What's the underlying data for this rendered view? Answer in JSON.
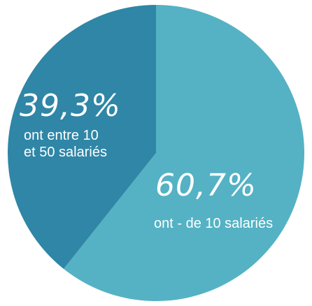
{
  "chart_data": {
    "type": "pie",
    "slices": [
      {
        "value": 60.7,
        "percent_label": "60,7%",
        "label_lines": [
          "ont - de 10 salariés"
        ],
        "color": "#54b2c4"
      },
      {
        "value": 39.3,
        "percent_label": "39,3%",
        "label_lines": [
          "ont entre 10",
          "et 50 salariés"
        ],
        "color": "#2f86a6"
      }
    ],
    "start": "top",
    "direction": "clockwise"
  }
}
